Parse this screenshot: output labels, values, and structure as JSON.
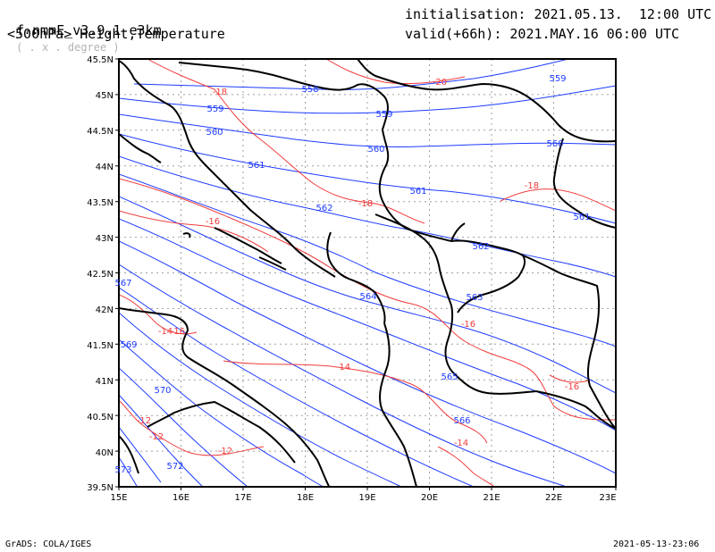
{
  "header": {
    "model": "f-nmmE_v3.9.1-e3km",
    "coord_hint": "( . x . degree )",
    "level": "<500hPa> Height,Temperature",
    "init": "initialisation: 2021.05.13.  12:00 UTC",
    "valid": "valid(+66h): 2021.MAY.16 06:00 UTC"
  },
  "map": {
    "lon_labels": [
      "15E",
      "16E",
      "17E",
      "18E",
      "19E",
      "20E",
      "21E",
      "22E",
      "23E"
    ],
    "lat_labels": [
      "45.5N",
      "45N",
      "44.5N",
      "44N",
      "43.5N",
      "43N",
      "42.5N",
      "42N",
      "41.5N",
      "41N",
      "40.5N",
      "40N",
      "39.5N"
    ],
    "height_labels": [
      "558",
      "559",
      "559",
      "559",
      "560",
      "560",
      "560",
      "561",
      "561",
      "561",
      "562",
      "562",
      "563",
      "564",
      "565",
      "566",
      "567",
      "569",
      "570",
      "572",
      "573"
    ],
    "temp_labels": [
      "-20",
      "-18",
      "-18",
      "-18",
      "-16",
      "-16",
      "-16",
      "-16",
      "-14",
      "-14",
      "-14",
      "-12",
      "-12",
      "-12"
    ],
    "colors": {
      "height": "#1e3cff",
      "temperature": "#f03c3c",
      "coast": "#000000",
      "grid": "#a0a0a0"
    }
  },
  "footer": {
    "left": "GrADS: COLA/IGES",
    "right": "2021-05-13-23:06"
  }
}
